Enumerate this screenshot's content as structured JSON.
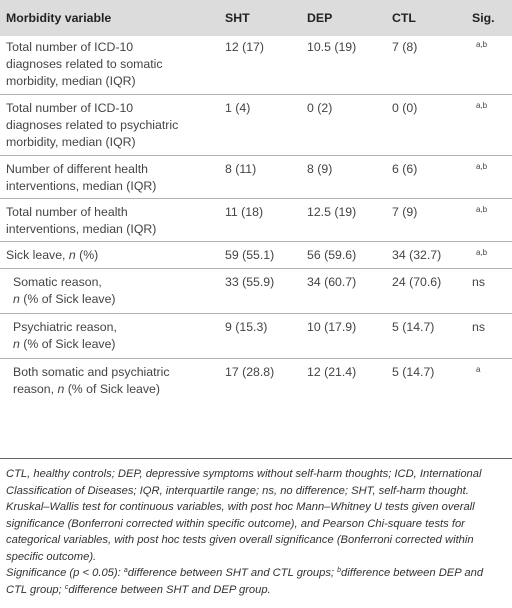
{
  "table": {
    "headers": [
      "Morbidity variable",
      "SHT",
      "DEP",
      "CTL",
      "Sig."
    ],
    "rows": [
      {
        "label_lines": [
          "Total number of ICD-10",
          "diagnoses related to somatic",
          "morbidity, median (IQR)"
        ],
        "sht": "12 (17)",
        "dep": "10.5 (19)",
        "ctl": "7 (8)",
        "sig": "a,b"
      },
      {
        "label_lines": [
          "Total number of ICD-10",
          "diagnoses related to psychiatric",
          "morbidity, median (IQR)"
        ],
        "sht": "1 (4)",
        "dep": "0 (2)",
        "ctl": "0 (0)",
        "sig": "a,b"
      },
      {
        "label_lines": [
          "Number of different health",
          "interventions, median (IQR)"
        ],
        "sht": "8 (11)",
        "dep": "8 (9)",
        "ctl": "6 (6)",
        "sig": "a,b"
      },
      {
        "label_lines": [
          "Total number of health",
          "interventions, median (IQR)"
        ],
        "sht": "11 (18)",
        "dep": "12.5 (19)",
        "ctl": "7 (9)",
        "sig": "a,b"
      },
      {
        "label_main": "Sick leave, ",
        "label_italic": "n",
        "label_rest": " (%)",
        "sht": "59 (55.1)",
        "dep": "56 (59.6)",
        "ctl": "34 (32.7)",
        "sig": "a,b"
      },
      {
        "label_line1": "Somatic reason,",
        "label_italic": "n",
        "label_rest": " (% of Sick leave)",
        "sht": "33 (55.9)",
        "dep": "34 (60.7)",
        "ctl": "24 (70.6)",
        "sig": "ns"
      },
      {
        "label_line1": "Psychiatric reason,",
        "label_italic": "n",
        "label_rest": " (% of Sick leave)",
        "sht": "9 (15.3)",
        "dep": "10 (17.9)",
        "ctl": "5 (14.7)",
        "sig": "ns"
      },
      {
        "label_line1": "Both somatic and psychiatric",
        "label_line2a": "reason, ",
        "label_italic": "n",
        "label_rest": " (% of Sick leave)",
        "sht": "17 (28.8)",
        "dep": "12 (21.4)",
        "ctl": "5 (14.7)",
        "sig": "a"
      }
    ]
  },
  "notes": {
    "abbreviations": "CTL, healthy controls; DEP, depressive symptoms without self-harm thoughts; ICD, International Classification of Diseases; IQR, interquartile range; ns, no difference; SHT, self-harm thought.",
    "tests": "Kruskal–Wallis test for continuous variables, with post hoc Mann–Whitney U tests given overall significance (Bonferroni corrected within specific outcome), and Pearson Chi-square tests for categorical variables, with post hoc tests given overall significance (Bonferroni corrected within specific outcome).",
    "significance_intro": "Significance (p < 0.05): ",
    "sup_a": "a",
    "sig_a": "difference between SHT and CTL groups; ",
    "sup_b": "b",
    "sig_b": "difference between DEP and CTL group; ",
    "sup_c": "c",
    "sig_c": "difference between SHT and DEP group."
  }
}
